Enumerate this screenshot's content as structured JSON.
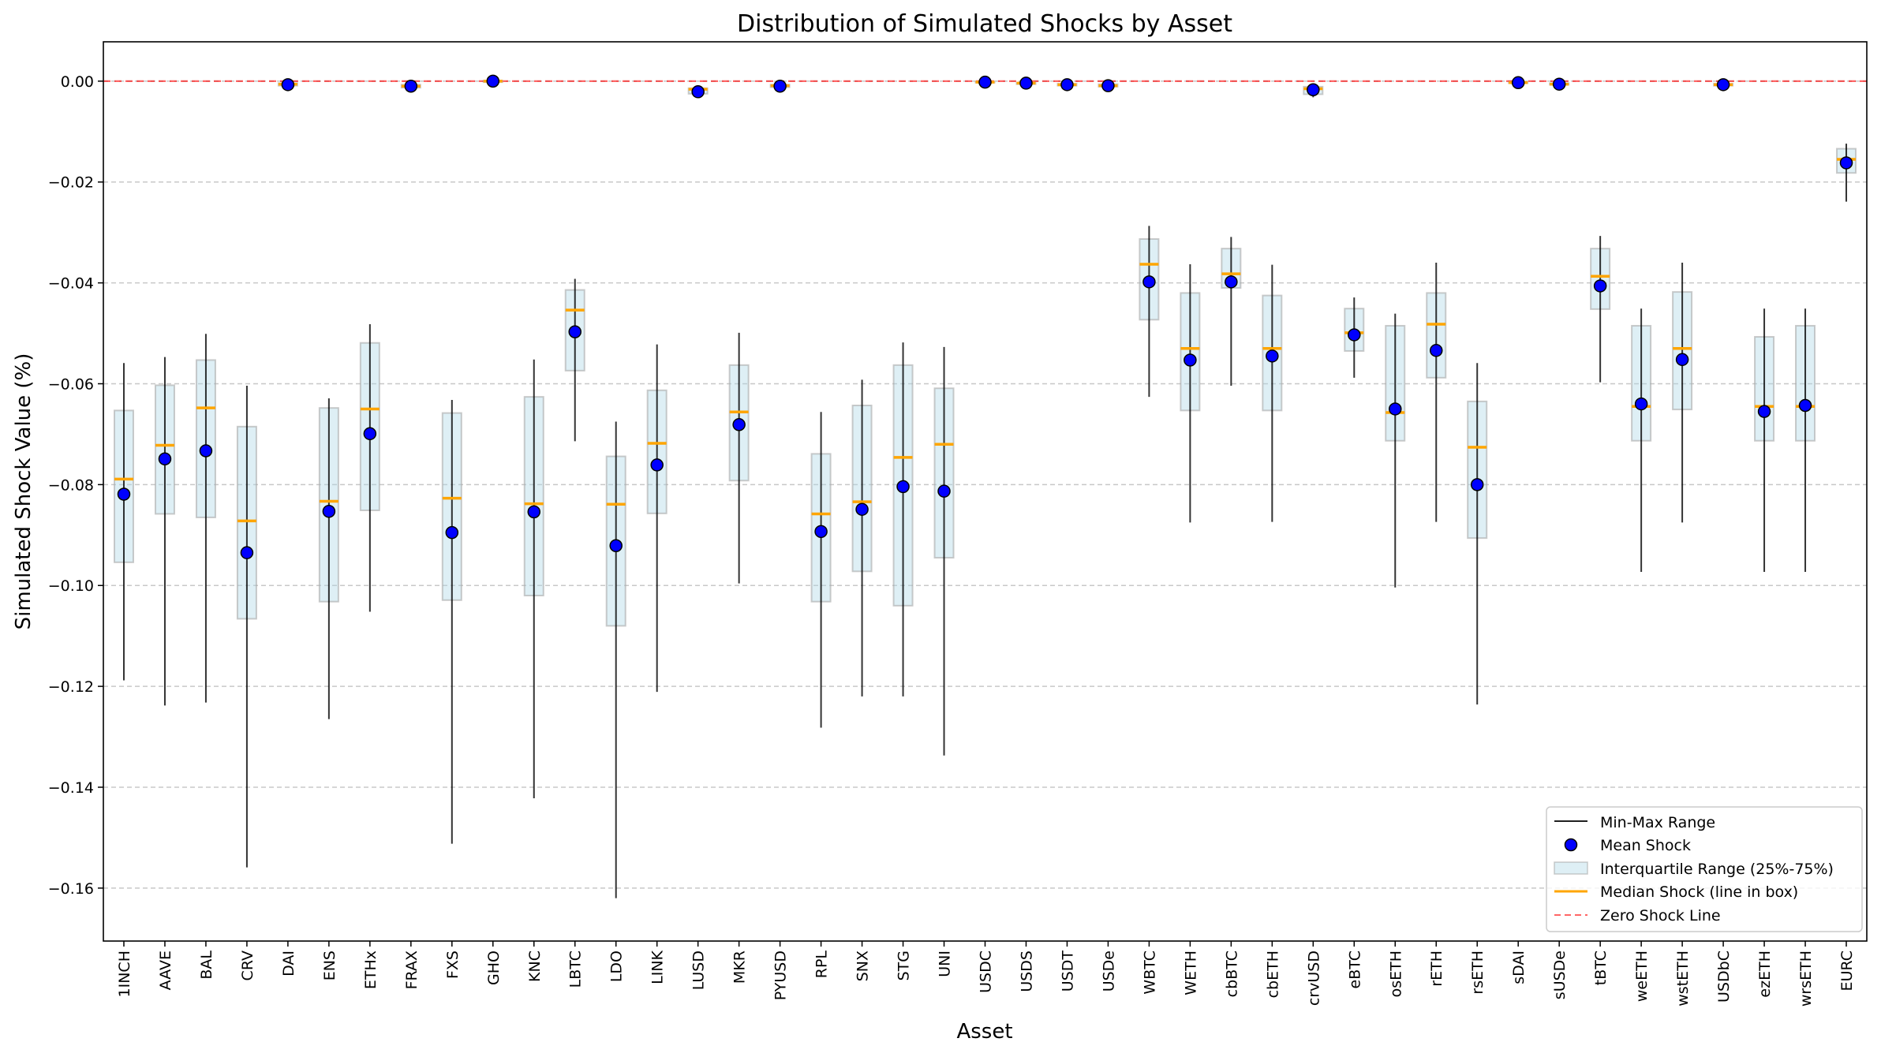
{
  "chart_data": {
    "type": "box",
    "title": "Distribution of Simulated Shocks by Asset",
    "xlabel": "Asset",
    "ylabel": "Simulated Shock Value (%)",
    "ylim": [
      -0.1705,
      0.0078
    ],
    "yticks": [
      0.0,
      -0.02,
      -0.04,
      -0.06,
      -0.08,
      -0.1,
      -0.12,
      -0.14,
      -0.16
    ],
    "ytick_labels": [
      "0.00",
      "−0.02",
      "−0.04",
      "−0.06",
      "−0.08",
      "−0.10",
      "−0.12",
      "−0.14",
      "−0.16"
    ],
    "grid": "y-dashed",
    "legend_position": "lower-right",
    "legend": [
      "Min-Max Range",
      "Mean Shock",
      "Interquartile Range (25%-75%)",
      "Median Shock (line in box)",
      "Zero Shock Line"
    ],
    "colors": {
      "range": "#000000",
      "mean": "#0000ff",
      "iqr_fill": "#add8e6",
      "median": "#ffa500",
      "zero_line": "#ff0000"
    },
    "assets": [
      {
        "name": "1INCH",
        "min": -0.1188,
        "q1": -0.0954,
        "median": -0.0789,
        "q3": -0.0653,
        "max": -0.0559,
        "mean": -0.0819
      },
      {
        "name": "AAVE",
        "min": -0.1238,
        "q1": -0.0858,
        "median": -0.0722,
        "q3": -0.0603,
        "max": -0.0547,
        "mean": -0.0749
      },
      {
        "name": "BAL",
        "min": -0.1232,
        "q1": -0.0865,
        "median": -0.0648,
        "q3": -0.0553,
        "max": -0.0501,
        "mean": -0.0733
      },
      {
        "name": "CRV",
        "min": -0.1559,
        "q1": -0.1066,
        "median": -0.0872,
        "q3": -0.0685,
        "max": -0.0604,
        "mean": -0.0935
      },
      {
        "name": "DAI",
        "min": -0.001,
        "q1": -0.0009,
        "median": -0.0006,
        "q3": -0.0004,
        "max": -0.0003,
        "mean": -0.0007
      },
      {
        "name": "ENS",
        "min": -0.1265,
        "q1": -0.1032,
        "median": -0.0833,
        "q3": -0.0648,
        "max": -0.0629,
        "mean": -0.0853
      },
      {
        "name": "ETHx",
        "min": -0.1052,
        "q1": -0.0851,
        "median": -0.065,
        "q3": -0.0519,
        "max": -0.0482,
        "mean": -0.0699
      },
      {
        "name": "FRAX",
        "min": -0.0014,
        "q1": -0.0013,
        "median": -0.001,
        "q3": -0.0007,
        "max": -0.0006,
        "mean": -0.001
      },
      {
        "name": "FXS",
        "min": -0.1512,
        "q1": -0.1029,
        "median": -0.0827,
        "q3": -0.0658,
        "max": -0.0632,
        "mean": -0.0895
      },
      {
        "name": "GHO",
        "min": -0.0003,
        "q1": -0.0002,
        "median": 0.0,
        "q3": 0.0001,
        "max": 0.0002,
        "mean": 0.0
      },
      {
        "name": "KNC",
        "min": -0.1422,
        "q1": -0.102,
        "median": -0.0838,
        "q3": -0.0626,
        "max": -0.0552,
        "mean": -0.0854
      },
      {
        "name": "LBTC",
        "min": -0.0714,
        "q1": -0.0574,
        "median": -0.0454,
        "q3": -0.0414,
        "max": -0.0392,
        "mean": -0.0497
      },
      {
        "name": "LDO",
        "min": -0.162,
        "q1": -0.108,
        "median": -0.0839,
        "q3": -0.0744,
        "max": -0.0675,
        "mean": -0.0921
      },
      {
        "name": "LINK",
        "min": -0.1211,
        "q1": -0.0857,
        "median": -0.0718,
        "q3": -0.0613,
        "max": -0.0522,
        "mean": -0.0761
      },
      {
        "name": "LUSD",
        "min": -0.003,
        "q1": -0.0025,
        "median": -0.0016,
        "q3": -0.0014,
        "max": -0.0013,
        "mean": -0.0021
      },
      {
        "name": "MKR",
        "min": -0.0996,
        "q1": -0.0792,
        "median": -0.0656,
        "q3": -0.0563,
        "max": -0.0499,
        "mean": -0.0681
      },
      {
        "name": "PYUSD",
        "min": -0.0013,
        "q1": -0.0012,
        "median": -0.0009,
        "q3": -0.0007,
        "max": -0.0006,
        "mean": -0.001
      },
      {
        "name": "RPL",
        "min": -0.1282,
        "q1": -0.1032,
        "median": -0.0858,
        "q3": -0.0739,
        "max": -0.0656,
        "mean": -0.0893
      },
      {
        "name": "SNX",
        "min": -0.122,
        "q1": -0.0972,
        "median": -0.0834,
        "q3": -0.0643,
        "max": -0.0592,
        "mean": -0.0849
      },
      {
        "name": "STG",
        "min": -0.122,
        "q1": -0.104,
        "median": -0.0746,
        "q3": -0.0563,
        "max": -0.0518,
        "mean": -0.0804
      },
      {
        "name": "UNI",
        "min": -0.1337,
        "q1": -0.0945,
        "median": -0.072,
        "q3": -0.0609,
        "max": -0.0527,
        "mean": -0.0813
      },
      {
        "name": "USDC",
        "min": -0.0004,
        "q1": -0.0003,
        "median": -0.0002,
        "q3": -0.0001,
        "max": 0.0,
        "mean": -0.0002
      },
      {
        "name": "USDS",
        "min": -0.0007,
        "q1": -0.0006,
        "median": -0.0004,
        "q3": -0.0003,
        "max": -0.0002,
        "mean": -0.0004
      },
      {
        "name": "USDT",
        "min": -0.001,
        "q1": -0.0009,
        "median": -0.0007,
        "q3": -0.0005,
        "max": -0.0004,
        "mean": -0.0007
      },
      {
        "name": "USDe",
        "min": -0.0012,
        "q1": -0.0011,
        "median": -0.0009,
        "q3": -0.0006,
        "max": -0.0005,
        "mean": -0.0009
      },
      {
        "name": "WBTC",
        "min": -0.0626,
        "q1": -0.0473,
        "median": -0.0363,
        "q3": -0.0313,
        "max": -0.0287,
        "mean": -0.0398
      },
      {
        "name": "WETH",
        "min": -0.0875,
        "q1": -0.0653,
        "median": -0.053,
        "q3": -0.042,
        "max": -0.0363,
        "mean": -0.0553
      },
      {
        "name": "cbBTC",
        "min": -0.0604,
        "q1": -0.041,
        "median": -0.0382,
        "q3": -0.0332,
        "max": -0.0309,
        "mean": -0.0398
      },
      {
        "name": "cbETH",
        "min": -0.0874,
        "q1": -0.0653,
        "median": -0.053,
        "q3": -0.0425,
        "max": -0.0364,
        "mean": -0.0545
      },
      {
        "name": "crvUSD",
        "min": -0.0032,
        "q1": -0.0026,
        "median": -0.0015,
        "q3": -0.0011,
        "max": -0.001,
        "mean": -0.0017
      },
      {
        "name": "eBTC",
        "min": -0.0588,
        "q1": -0.0535,
        "median": -0.0499,
        "q3": -0.0451,
        "max": -0.0429,
        "mean": -0.0503
      },
      {
        "name": "osETH",
        "min": -0.1004,
        "q1": -0.0713,
        "median": -0.0657,
        "q3": -0.0485,
        "max": -0.0461,
        "mean": -0.065
      },
      {
        "name": "rETH",
        "min": -0.0874,
        "q1": -0.0588,
        "median": -0.0482,
        "q3": -0.042,
        "max": -0.036,
        "mean": -0.0534
      },
      {
        "name": "rsETH",
        "min": -0.1236,
        "q1": -0.0906,
        "median": -0.0726,
        "q3": -0.0635,
        "max": -0.0559,
        "mean": -0.08
      },
      {
        "name": "sDAI",
        "min": -0.0005,
        "q1": -0.0004,
        "median": -0.0003,
        "q3": -0.0002,
        "max": -0.0001,
        "mean": -0.0003
      },
      {
        "name": "sUSDe",
        "min": -0.0008,
        "q1": -0.0007,
        "median": -0.0006,
        "q3": -0.0004,
        "max": -0.0003,
        "mean": -0.0006
      },
      {
        "name": "tBTC",
        "min": -0.0597,
        "q1": -0.0452,
        "median": -0.0387,
        "q3": -0.0332,
        "max": -0.0307,
        "mean": -0.0406
      },
      {
        "name": "weETH",
        "min": -0.0973,
        "q1": -0.0713,
        "median": -0.0645,
        "q3": -0.0485,
        "max": -0.0451,
        "mean": -0.064
      },
      {
        "name": "wstETH",
        "min": -0.0875,
        "q1": -0.0651,
        "median": -0.053,
        "q3": -0.0418,
        "max": -0.036,
        "mean": -0.0552
      },
      {
        "name": "USDbC",
        "min": -0.001,
        "q1": -0.0009,
        "median": -0.0007,
        "q3": -0.0005,
        "max": -0.0004,
        "mean": -0.0007
      },
      {
        "name": "ezETH",
        "min": -0.0973,
        "q1": -0.0713,
        "median": -0.0645,
        "q3": -0.0507,
        "max": -0.0451,
        "mean": -0.0655
      },
      {
        "name": "wrsETH",
        "min": -0.0973,
        "q1": -0.0713,
        "median": -0.0645,
        "q3": -0.0485,
        "max": -0.0451,
        "mean": -0.0643
      },
      {
        "name": "EURC",
        "min": -0.0239,
        "q1": -0.0182,
        "median": -0.0155,
        "q3": -0.0134,
        "max": -0.0124,
        "mean": -0.0162
      }
    ]
  }
}
